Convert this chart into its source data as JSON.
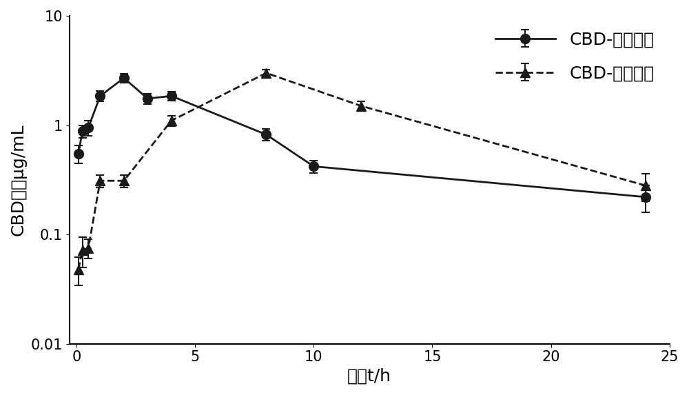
{
  "title": "",
  "xlabel": "时间t/h",
  "ylabel": "CBD含量μg/mL",
  "xlim": [
    -0.3,
    25
  ],
  "ylim_log": [
    0.01,
    10
  ],
  "xticks": [
    0,
    5,
    10,
    15,
    20,
    25
  ],
  "background_color": "#ffffff",
  "line1_label": "CBD-吐温溶液",
  "line1_x": [
    0.083,
    0.25,
    0.5,
    1.0,
    2.0,
    3.0,
    4.0,
    8.0,
    10.0,
    24.0
  ],
  "line1_y": [
    0.55,
    0.88,
    0.95,
    1.85,
    2.7,
    1.75,
    1.85,
    0.82,
    0.42,
    0.22
  ],
  "line1_yerr": [
    0.1,
    0.12,
    0.15,
    0.2,
    0.25,
    0.18,
    0.18,
    0.1,
    0.055,
    0.06
  ],
  "line1_style": "-",
  "line1_marker": "o",
  "line1_color": "#1a1a1a",
  "line1_linewidth": 2.0,
  "line1_markersize": 10,
  "line2_label": "CBD-乳帼样品",
  "line2_x": [
    0.083,
    0.25,
    0.5,
    1.0,
    2.0,
    4.0,
    8.0,
    12.0,
    24.0
  ],
  "line2_y": [
    0.048,
    0.072,
    0.075,
    0.31,
    0.31,
    1.1,
    3.0,
    1.5,
    0.28
  ],
  "line2_yerr": [
    0.014,
    0.022,
    0.015,
    0.04,
    0.04,
    0.12,
    0.2,
    0.15,
    0.08
  ],
  "line2_style": "--",
  "line2_marker": "^",
  "line2_color": "#1a1a1a",
  "line2_linewidth": 2.0,
  "line2_markersize": 10,
  "legend_fontsize": 18,
  "axis_label_fontsize": 18,
  "tick_fontsize": 15
}
